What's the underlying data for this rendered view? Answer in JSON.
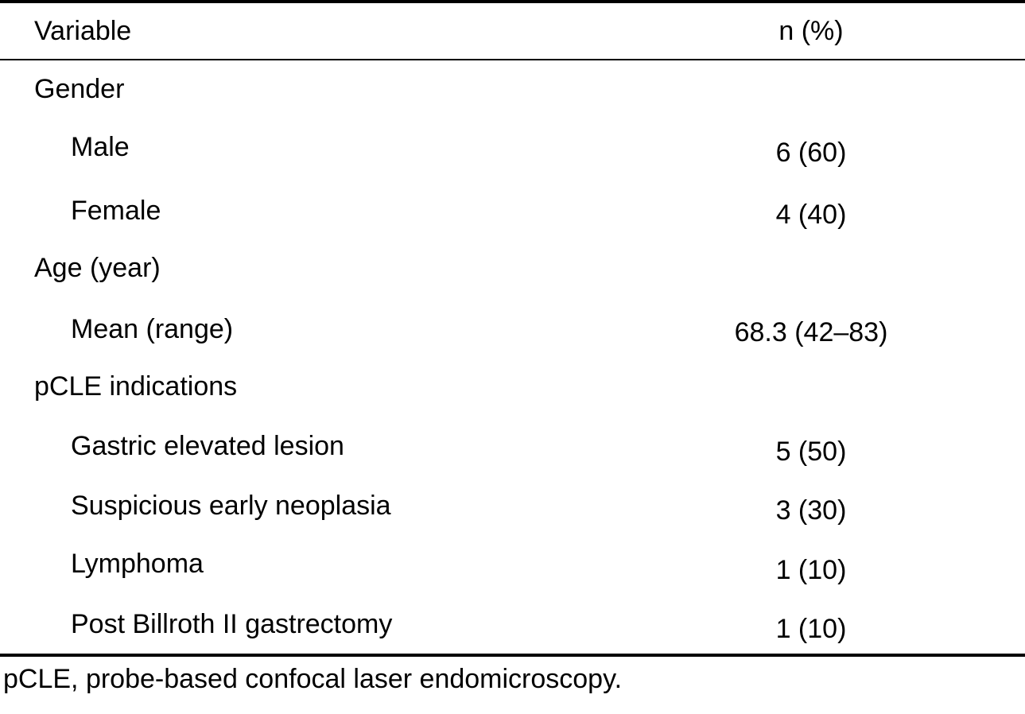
{
  "table": {
    "header": {
      "variable": "Variable",
      "value": "n (%)"
    },
    "rows": [
      {
        "label": "Gender",
        "value": ""
      },
      {
        "label": "Male",
        "value": "6 (60)"
      },
      {
        "label": "Female",
        "value": "4 (40)"
      },
      {
        "label": "Age (year)",
        "value": ""
      },
      {
        "label": "Mean (range)",
        "value": "68.3 (42–83)"
      },
      {
        "label": "pCLE indications",
        "value": ""
      },
      {
        "label": "Gastric elevated lesion",
        "value": "5 (50)"
      },
      {
        "label": "Suspicious early neoplasia",
        "value": "3 (30)"
      },
      {
        "label": "Lymphoma",
        "value": "1 (10)"
      },
      {
        "label": "Post Billroth II gastrectomy",
        "value": "1 (10)"
      }
    ]
  },
  "footnote": "pCLE, probe-based confocal laser endomicroscopy."
}
